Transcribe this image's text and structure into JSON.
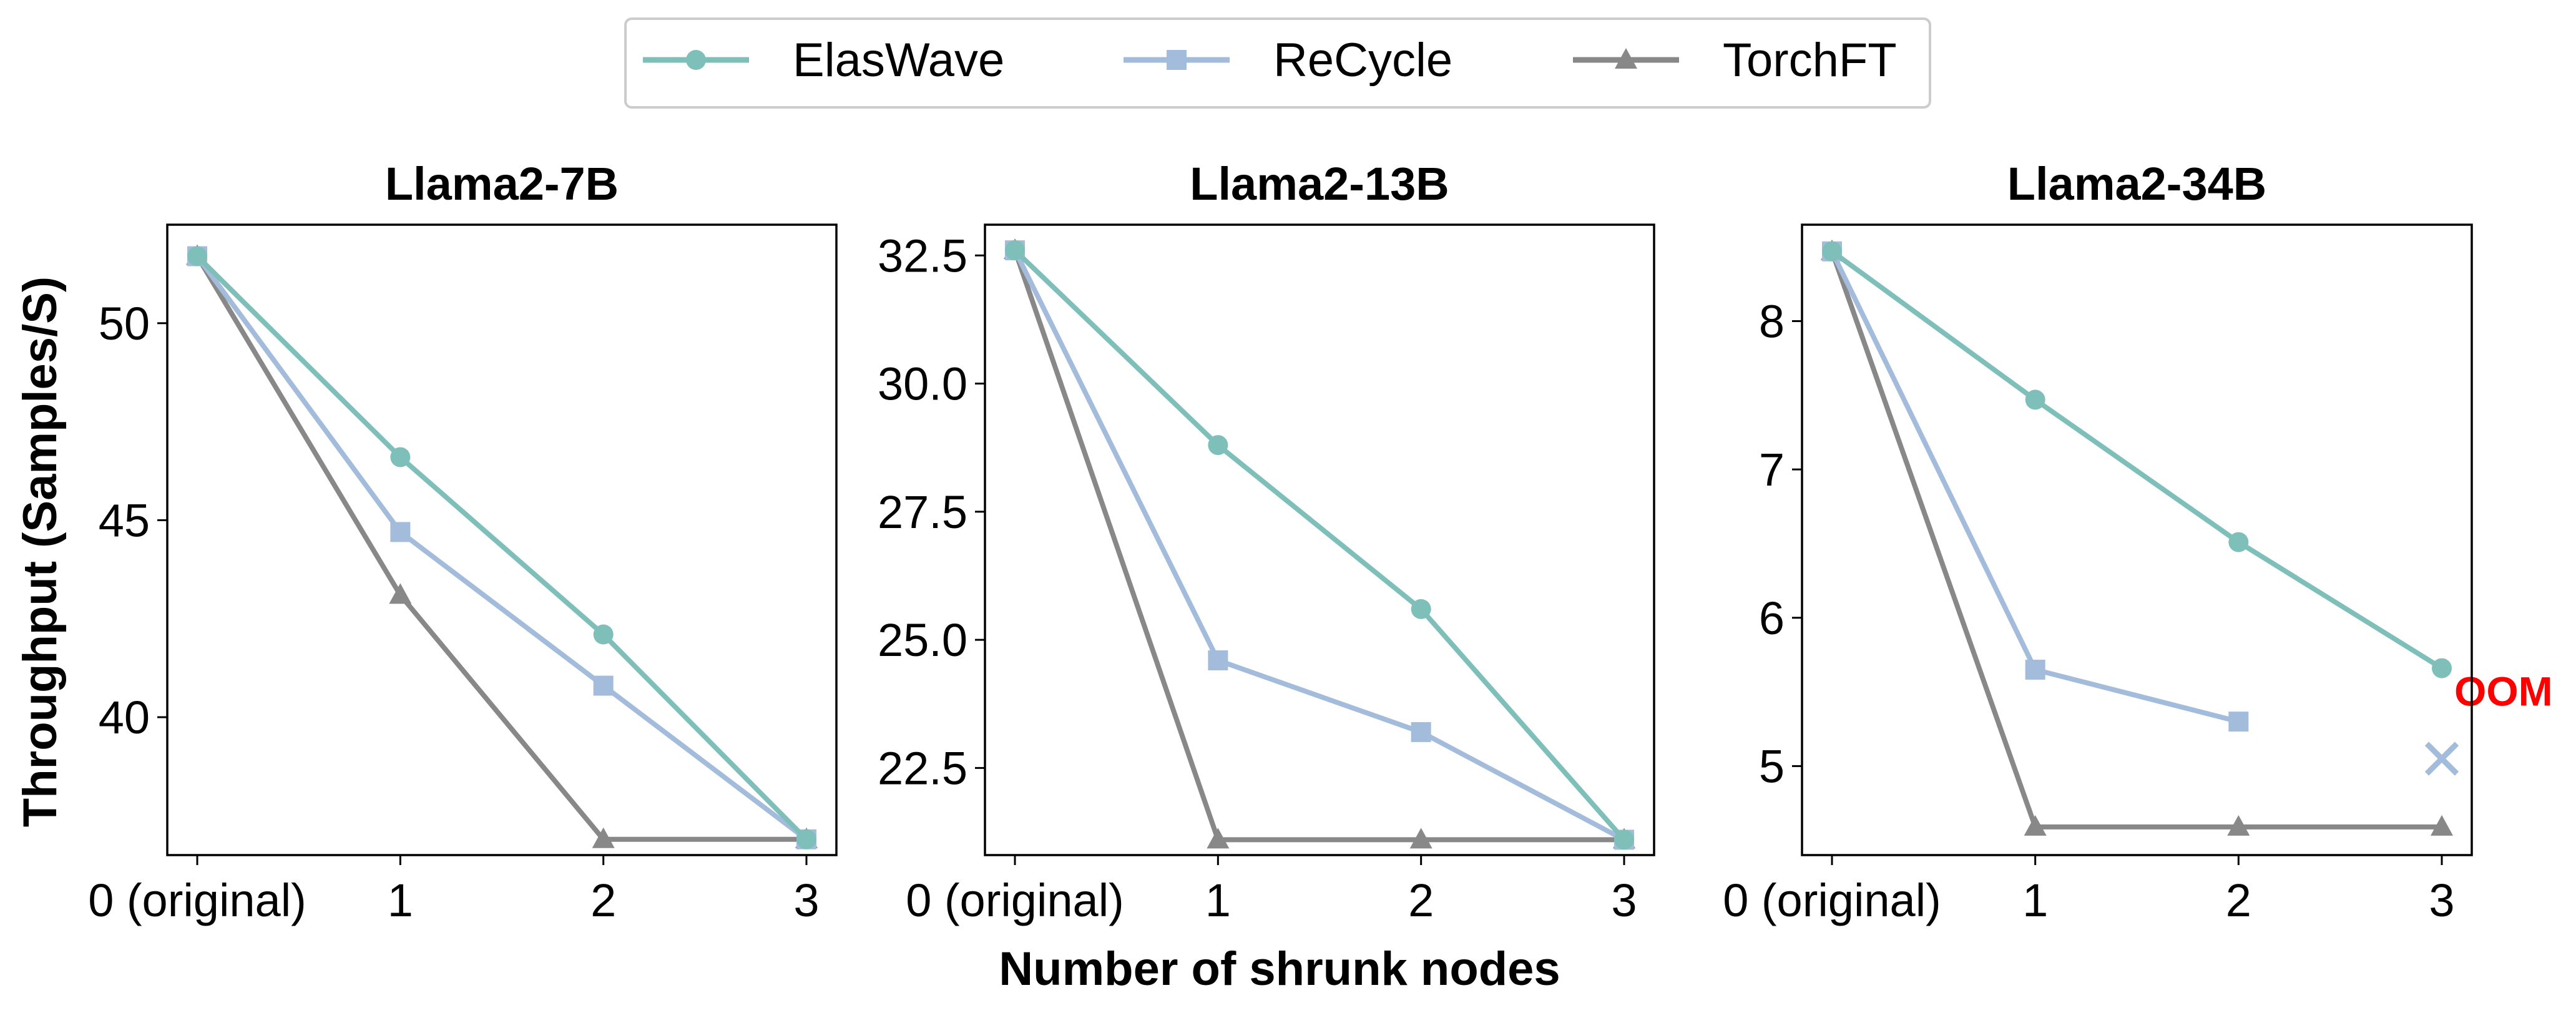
{
  "figure": {
    "xlabel": "Number of shrunk nodes",
    "ylabel": "Throughput (Samples/S)"
  },
  "legend": {
    "items": [
      {
        "name": "ElasWave",
        "color": "#7fbfba",
        "marker": "circle"
      },
      {
        "name": "ReCycle",
        "color": "#a4bcdc",
        "marker": "square"
      },
      {
        "name": "TorchFT",
        "color": "#888888",
        "marker": "triangle"
      }
    ]
  },
  "chart_data": [
    {
      "type": "line",
      "title": "Llama2-7B",
      "categories": [
        "0 (original)",
        "1",
        "2",
        "3"
      ],
      "ylim": [
        36.5,
        52.5
      ],
      "yticks": [
        "40",
        "45",
        "50"
      ],
      "series": [
        {
          "name": "ElasWave",
          "values": [
            51.7,
            46.6,
            42.1,
            36.9
          ]
        },
        {
          "name": "ReCycle",
          "values": [
            51.7,
            44.7,
            40.8,
            36.9
          ]
        },
        {
          "name": "TorchFT",
          "values": [
            51.7,
            43.1,
            36.9,
            36.9
          ]
        }
      ]
    },
    {
      "type": "line",
      "title": "Llama2-13B",
      "categories": [
        "0 (original)",
        "1",
        "2",
        "3"
      ],
      "ylim": [
        20.8,
        33.1
      ],
      "yticks": [
        "22.5",
        "25.0",
        "27.5",
        "30.0",
        "32.5"
      ],
      "series": [
        {
          "name": "ElasWave",
          "values": [
            32.6,
            28.8,
            25.6,
            21.1
          ]
        },
        {
          "name": "ReCycle",
          "values": [
            32.6,
            24.6,
            23.2,
            21.1
          ]
        },
        {
          "name": "TorchFT",
          "values": [
            32.6,
            21.1,
            21.1,
            21.1
          ]
        }
      ]
    },
    {
      "type": "line",
      "title": "Llama2-34B",
      "categories": [
        "0 (original)",
        "1",
        "2",
        "3"
      ],
      "ylim": [
        4.4,
        8.65
      ],
      "yticks": [
        "5",
        "6",
        "7",
        "8"
      ],
      "series": [
        {
          "name": "ElasWave",
          "values": [
            8.47,
            7.47,
            6.51,
            5.66
          ]
        },
        {
          "name": "ReCycle",
          "values": [
            8.47,
            5.65,
            5.3,
            null
          ]
        },
        {
          "name": "TorchFT",
          "values": [
            8.47,
            4.59,
            4.59,
            4.59
          ]
        }
      ],
      "annotations": [
        {
          "text": "OOM",
          "color": "#ff0000",
          "series": "ReCycle",
          "category": "3",
          "y": 5.05,
          "marker": "x"
        }
      ]
    }
  ]
}
